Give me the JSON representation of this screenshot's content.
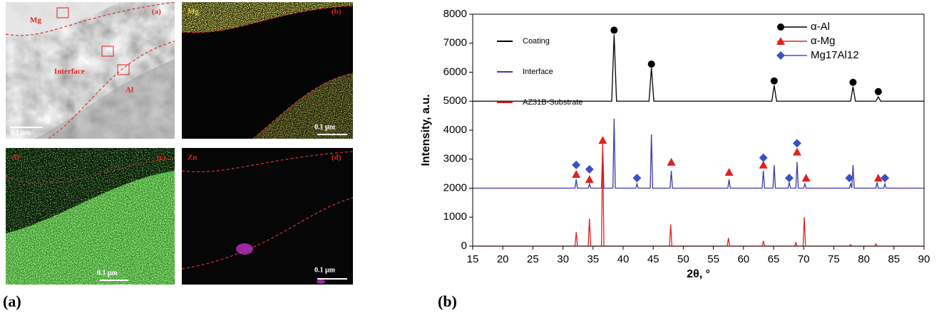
{
  "micrographs": [
    {
      "tag": "(a)",
      "labels": [
        "Mg",
        "Interface",
        "Al"
      ],
      "scale": "0.1 μm"
    },
    {
      "tag": "(b)",
      "labels": [
        "Mg"
      ],
      "scale": "0.1 μm"
    },
    {
      "tag": "(c)",
      "labels": [
        "Al"
      ],
      "scale": "0.1 μm"
    },
    {
      "tag": "(d)",
      "labels": [
        "Zn"
      ],
      "scale": "0.1 μm"
    }
  ],
  "captions": [
    "(a)",
    "(b)"
  ],
  "chart_data": {
    "type": "line",
    "xlabel": "2θ, °",
    "ylabel": "Intensity, a.u.",
    "xlim": [
      15,
      90
    ],
    "xticks": [
      15,
      20,
      25,
      30,
      35,
      40,
      45,
      50,
      55,
      60,
      65,
      70,
      75,
      80,
      85,
      90
    ],
    "ylim": [
      0,
      8000
    ],
    "yticks": [
      0,
      1000,
      2000,
      3000,
      4000,
      5000,
      6000,
      7000,
      8000
    ],
    "series": [
      {
        "name": "Coating",
        "color": "#000000",
        "x": [
          15,
          38.1,
          38.5,
          38.9,
          44.3,
          44.7,
          45.1,
          64.7,
          65.1,
          65.5,
          77.8,
          78.2,
          78.6,
          82.0,
          82.4,
          82.8,
          90
        ],
        "values": [
          5000,
          5000,
          7300,
          5000,
          5000,
          6150,
          5000,
          5000,
          5550,
          5000,
          5000,
          5500,
          5000,
          5000,
          5150,
          5000,
          5000
        ]
      },
      {
        "name": "Interface",
        "color": "#3a3aa8",
        "x": [
          15,
          32.0,
          32.2,
          32.4,
          34.2,
          34.4,
          34.6,
          36.4,
          36.6,
          36.8,
          38.3,
          38.5,
          38.7,
          42.1,
          42.3,
          42.5,
          44.5,
          44.7,
          44.9,
          47.8,
          48.0,
          48.2,
          57.4,
          57.6,
          57.8,
          63.1,
          63.3,
          63.5,
          64.9,
          65.1,
          65.3,
          67.4,
          67.6,
          67.8,
          68.7,
          68.9,
          69.1,
          70.0,
          70.2,
          70.4,
          77.6,
          77.8,
          78.0,
          78.0,
          78.2,
          78.4,
          82.0,
          82.2,
          82.4,
          83.3,
          83.5,
          83.7,
          90
        ],
        "values": [
          2000,
          2000,
          2300,
          2000,
          2000,
          2150,
          2000,
          2000,
          3400,
          2000,
          2000,
          4400,
          2000,
          2000,
          2150,
          2000,
          2000,
          3850,
          2000,
          2000,
          2600,
          2000,
          2000,
          2300,
          2000,
          2000,
          2600,
          2000,
          2000,
          2800,
          2000,
          2000,
          2200,
          2000,
          2000,
          2900,
          2000,
          2000,
          2150,
          2000,
          2000,
          2150,
          2000,
          2000,
          2800,
          2000,
          2000,
          2200,
          2000,
          2000,
          2150,
          2000,
          2000
        ]
      },
      {
        "name": "AZ31B-Substrate",
        "color": "#e02020",
        "x": [
          15,
          32.0,
          32.2,
          32.4,
          34.2,
          34.4,
          34.6,
          36.4,
          36.6,
          36.8,
          47.7,
          47.9,
          48.1,
          57.3,
          57.5,
          57.7,
          63.1,
          63.3,
          63.5,
          68.5,
          68.7,
          68.9,
          69.9,
          70.1,
          70.3,
          77.6,
          77.8,
          78.0,
          81.8,
          82.0,
          82.2,
          90
        ],
        "values": [
          0,
          0,
          480,
          0,
          0,
          950,
          0,
          0,
          3700,
          0,
          0,
          750,
          0,
          0,
          280,
          0,
          0,
          180,
          0,
          0,
          120,
          0,
          0,
          1000,
          0,
          0,
          50,
          0,
          0,
          80,
          0,
          0
        ]
      },
      {
        "name": "α-Al",
        "color": "#000000",
        "marker": "circle",
        "x": [
          38.5,
          44.7,
          65.1,
          78.2,
          82.4
        ],
        "values": [
          7450,
          6280,
          5700,
          5650,
          5330
        ]
      },
      {
        "name": "α-Mg",
        "color": "#e02020",
        "marker": "triangle",
        "x": [
          32.2,
          34.4,
          36.6,
          48.0,
          57.6,
          63.3,
          68.9,
          70.4,
          82.4
        ],
        "values": [
          2480,
          2300,
          3650,
          2900,
          2550,
          2800,
          3250,
          2350,
          2350
        ]
      },
      {
        "name": "Mg17Al12",
        "color": "#3a50c8",
        "marker": "diamond",
        "x": [
          32.2,
          34.4,
          42.3,
          63.3,
          67.6,
          68.9,
          77.6,
          83.5
        ],
        "values": [
          2800,
          2650,
          2350,
          3050,
          2350,
          3550,
          2350,
          2350
        ]
      }
    ]
  }
}
